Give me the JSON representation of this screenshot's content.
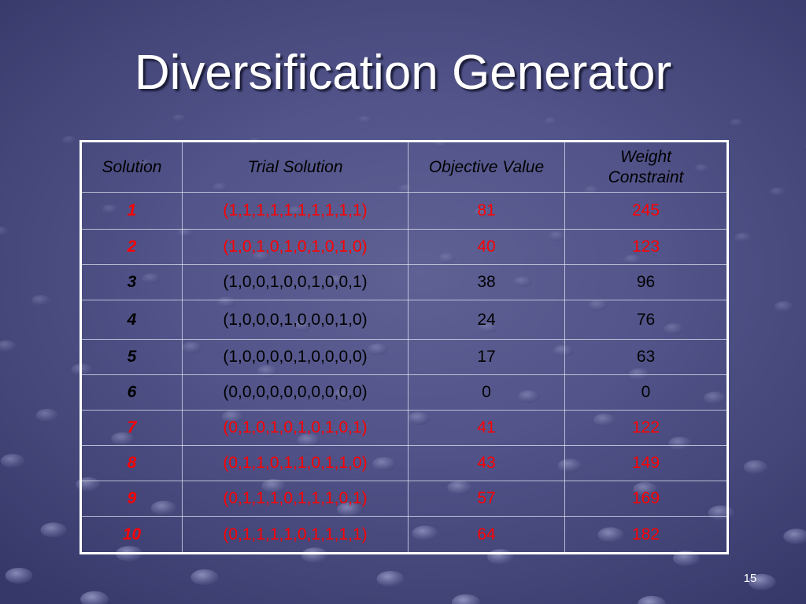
{
  "slide": {
    "title": "Diversification Generator",
    "page_number": "15"
  },
  "colors": {
    "title_text": "#ffffff",
    "header_text": "#000000",
    "table_border": "#ffffff",
    "highlight_row_text": "#ff0000",
    "normal_row_text": "#000000"
  },
  "table": {
    "headers": [
      "Solution",
      "Trial Solution",
      "Objective Value",
      "Weight Constraint"
    ],
    "rows": [
      {
        "solution": "1",
        "trial_solution": "(1,1,1,1,1,1,1,1,1,1)",
        "objective_value": "81",
        "weight_constraint": "245",
        "text_color": "#ff0000"
      },
      {
        "solution": "2",
        "trial_solution": "(1,0,1,0,1,0,1,0,1,0)",
        "objective_value": "40",
        "weight_constraint": "123",
        "text_color": "#ff0000"
      },
      {
        "solution": "3",
        "trial_solution": "(1,0,0,1,0,0,1,0,0,1)",
        "objective_value": "38",
        "weight_constraint": "96",
        "text_color": "#000000"
      },
      {
        "solution": "4",
        "trial_solution": "(1,0,0,0,1,0,0,0,1,0)",
        "objective_value": "24",
        "weight_constraint": "76",
        "text_color": "#000000"
      },
      {
        "solution": "5",
        "trial_solution": "(1,0,0,0,0,1,0,0,0,0)",
        "objective_value": "17",
        "weight_constraint": "63",
        "text_color": "#000000"
      },
      {
        "solution": "6",
        "trial_solution": "(0,0,0,0,0,0,0,0,0,0)",
        "objective_value": "0",
        "weight_constraint": "0",
        "text_color": "#000000"
      },
      {
        "solution": "7",
        "trial_solution": "(0,1,0,1,0,1,0,1,0,1)",
        "objective_value": "41",
        "weight_constraint": "122",
        "text_color": "#ff0000"
      },
      {
        "solution": "8",
        "trial_solution": "(0,1,1,0,1,1,0,1,1,0)",
        "objective_value": "43",
        "weight_constraint": "149",
        "text_color": "#ff0000"
      },
      {
        "solution": "9",
        "trial_solution": "(0,1,1,1,0,1,1,1,0,1)",
        "objective_value": "57",
        "weight_constraint": "169",
        "text_color": "#ff0000"
      },
      {
        "solution": "10",
        "trial_solution": "(0,1,1,1,1,0,1,1,1,1)",
        "objective_value": "64",
        "weight_constraint": "182",
        "text_color": "#ff0000"
      }
    ]
  }
}
